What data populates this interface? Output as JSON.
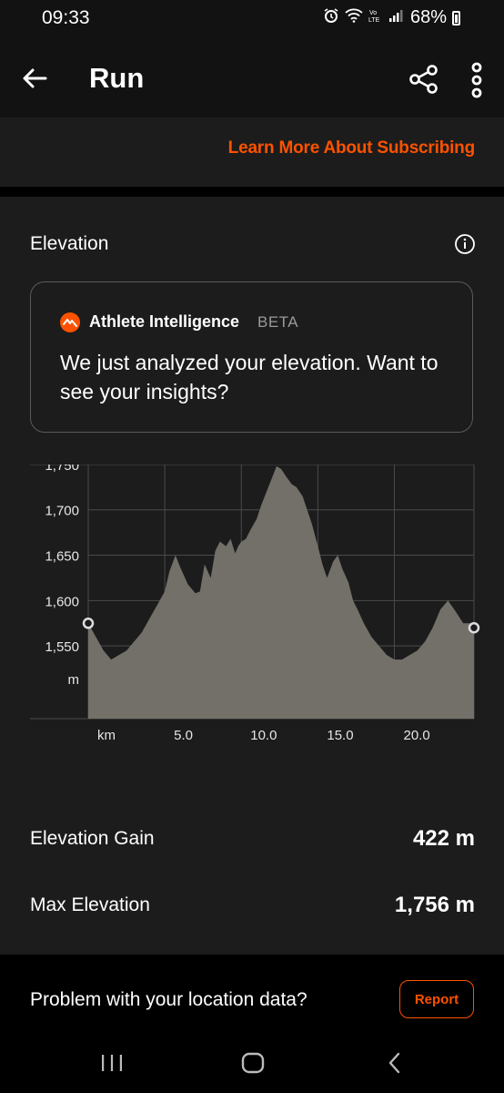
{
  "status_bar": {
    "time": "09:33",
    "battery": "68%",
    "icons": [
      "alarm-icon",
      "wifi-icon",
      "volte-icon",
      "signal-icon",
      "battery-icon"
    ]
  },
  "header": {
    "title": "Run",
    "icons": [
      "back-arrow-icon",
      "share-icon",
      "more-vertical-icon"
    ]
  },
  "banner": {
    "link": "Learn More About Subscribing"
  },
  "elevation": {
    "title": "Elevation",
    "info_icon": "info-icon",
    "ai": {
      "name": "Athlete Intelligence",
      "badge": "BETA",
      "message": "We just analyzed your elevation. Want to see your insights?"
    }
  },
  "chart_data": {
    "type": "area",
    "xlabel": "km",
    "ylabel": "m",
    "x_ticks": [
      "5.0",
      "10.0",
      "15.0",
      "20.0"
    ],
    "y_ticks": [
      "1,550",
      "1,600",
      "1,650",
      "1,700",
      "1,750"
    ],
    "xlim": [
      0,
      25.2
    ],
    "ylim": [
      1500,
      1770
    ],
    "grid": true,
    "fill_color": "#727068",
    "x": [
      0,
      0.5,
      1.0,
      1.5,
      2.0,
      2.5,
      3.0,
      3.5,
      4.0,
      4.5,
      5.0,
      5.3,
      5.7,
      6.0,
      6.5,
      7.0,
      7.3,
      7.6,
      8.0,
      8.3,
      8.6,
      9.0,
      9.3,
      9.6,
      9.8,
      10.0,
      10.3,
      10.6,
      11.0,
      11.3,
      11.6,
      12.0,
      12.3,
      12.6,
      13.0,
      13.3,
      13.6,
      14.0,
      14.3,
      14.6,
      15.0,
      15.3,
      15.6,
      16.0,
      16.3,
      16.6,
      17.0,
      17.3,
      17.6,
      18.0,
      18.5,
      19.0,
      19.5,
      20.0,
      20.5,
      21.0,
      21.5,
      22.0,
      22.5,
      23.0,
      23.5,
      24.0,
      24.5,
      25.0,
      25.2
    ],
    "y": [
      1575,
      1560,
      1545,
      1535,
      1540,
      1545,
      1555,
      1565,
      1580,
      1595,
      1610,
      1632,
      1650,
      1637,
      1618,
      1608,
      1610,
      1640,
      1625,
      1655,
      1665,
      1660,
      1668,
      1652,
      1660,
      1665,
      1668,
      1678,
      1690,
      1705,
      1718,
      1735,
      1748,
      1745,
      1735,
      1728,
      1725,
      1715,
      1700,
      1685,
      1660,
      1640,
      1625,
      1643,
      1650,
      1635,
      1620,
      1600,
      1590,
      1575,
      1560,
      1550,
      1540,
      1535,
      1535,
      1540,
      1545,
      1555,
      1570,
      1590,
      1600,
      1588,
      1575,
      1575,
      1570
    ]
  },
  "stats": [
    {
      "label": "Elevation Gain",
      "value": "422 m"
    },
    {
      "label": "Max Elevation",
      "value": "1,756 m"
    }
  ],
  "location": {
    "text": "Problem with your location data?",
    "button": "Report"
  },
  "nav": {
    "icons": [
      "recent-apps-icon",
      "home-icon",
      "back-icon"
    ]
  }
}
